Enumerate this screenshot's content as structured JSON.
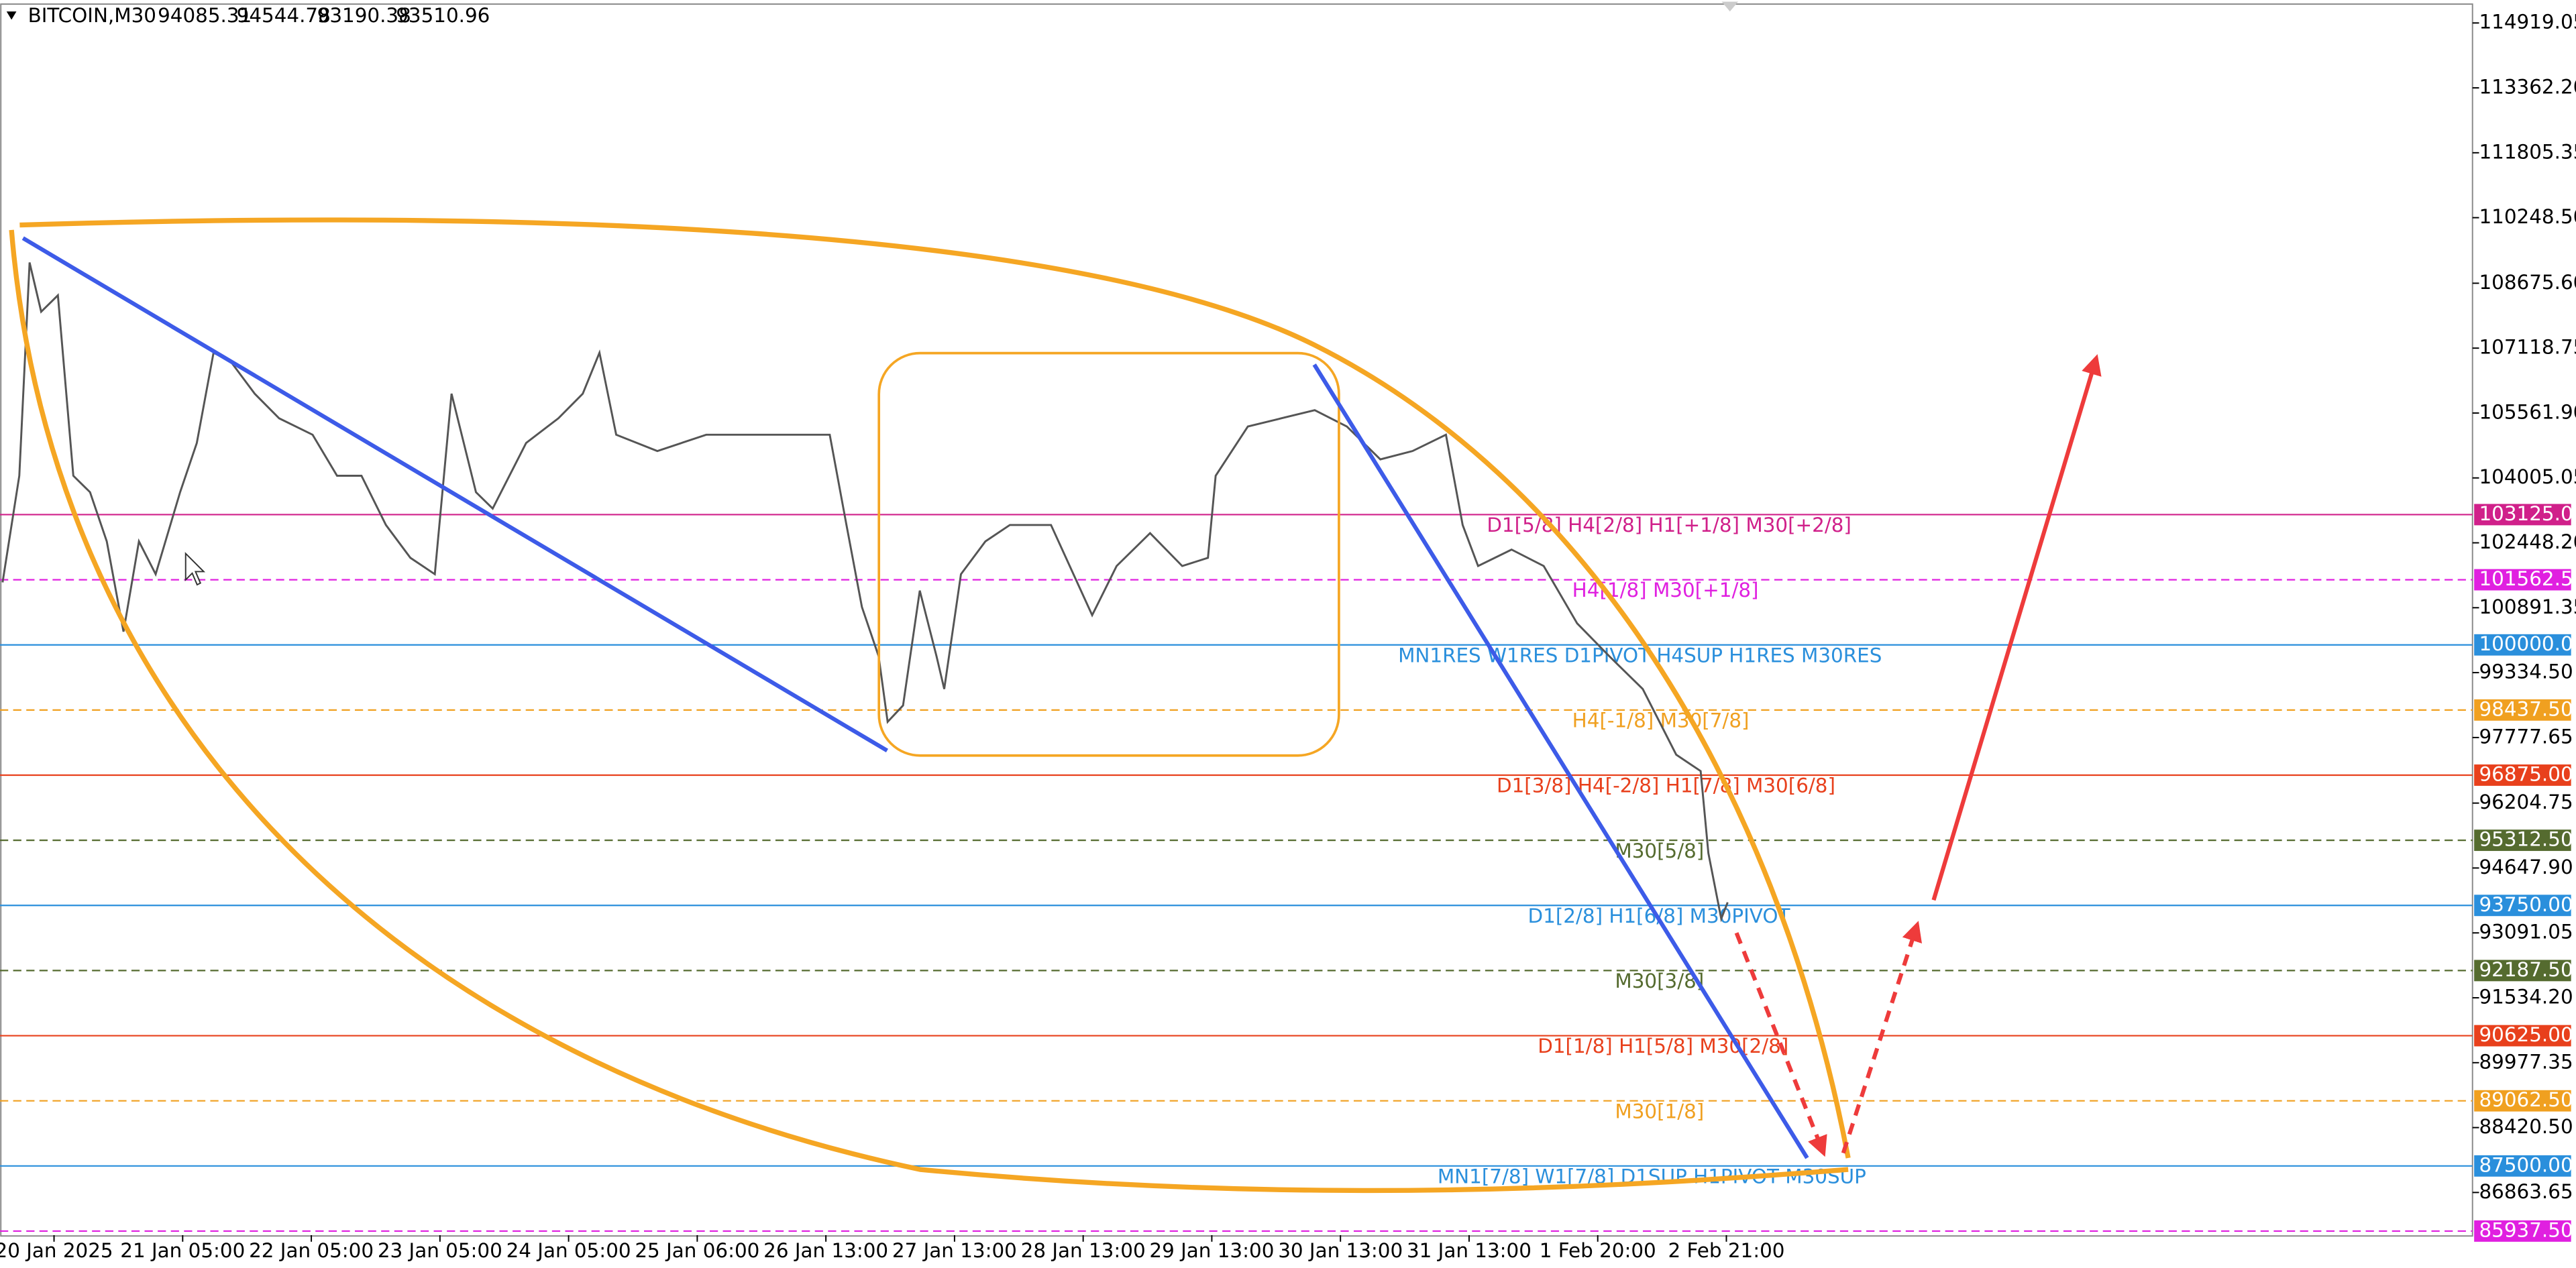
{
  "chart_data": {
    "type": "line",
    "symbol": "BITCOIN,M30",
    "ohlc": [
      94085.31,
      94544.78,
      93190.38,
      93510.96
    ],
    "x_labels": [
      "20 Jan 2025",
      "21 Jan 05:00",
      "22 Jan 05:00",
      "23 Jan 05:00",
      "24 Jan 05:00",
      "25 Jan 06:00",
      "26 Jan 13:00",
      "27 Jan 13:00",
      "28 Jan 13:00",
      "29 Jan 13:00",
      "30 Jan 13:00",
      "31 Jan 13:00",
      "1 Feb 20:00",
      "2 Feb 21:00"
    ],
    "xticks": [
      0,
      1,
      2,
      3,
      4,
      5,
      6,
      7,
      8,
      9,
      10,
      11,
      12,
      13
    ],
    "xlim": [
      -0.42,
      18.8
    ],
    "ylim": [
      85840,
      115470
    ],
    "yticks": [
      114919.05,
      {
        "value": 113362.2,
        "label": "113362.20"
      },
      111805.35,
      {
        "value": 110248.5,
        "label": "110248.50"
      },
      {
        "value": 108675.6,
        "label": "108675.60"
      },
      107118.75,
      {
        "value": 105561.9,
        "label": "105561.90"
      },
      104005.05,
      {
        "value": 102448.2,
        "label": "102448.20"
      },
      100891.35,
      {
        "value": 99334.5,
        "label": "99334.50"
      },
      97777.65,
      96204.75,
      {
        "value": 94647.9,
        "label": "94647.90"
      },
      93091.05,
      {
        "value": 91534.2,
        "label": "91534.20"
      },
      89977.35,
      {
        "value": 88420.5,
        "label": "88420.50"
      },
      86863.65
    ],
    "series": [
      {
        "color": "#555555",
        "x": [
          -0.4,
          -0.27,
          -0.19,
          -0.1,
          0.03,
          0.15,
          0.28,
          0.41,
          0.54,
          0.66,
          0.79,
          0.98,
          1.11,
          1.24,
          1.37,
          1.56,
          1.75,
          2.01,
          2.2,
          2.39,
          2.58,
          2.77,
          2.96,
          3.09,
          3.28,
          3.41,
          3.67,
          3.92,
          4.11,
          4.24,
          4.37,
          4.69,
          5.07,
          5.45,
          5.84,
          6.03,
          6.16,
          6.28,
          6.41,
          6.48,
          6.6,
          6.73,
          6.86,
          6.92,
          7.05,
          7.24,
          7.43,
          7.75,
          8.07,
          8.26,
          8.52,
          8.77,
          8.97,
          9.03,
          9.28,
          9.54,
          9.8,
          10.05,
          10.31,
          10.56,
          10.82,
          10.95,
          11.07,
          11.33,
          11.58,
          11.84,
          12.09,
          12.35,
          12.61,
          12.8,
          12.86,
          12.96,
          13.01
        ],
        "values": [
          101499,
          104057,
          109173,
          107992,
          108386,
          104057,
          103663,
          102483,
          100318,
          102483,
          101696,
          103663,
          104844,
          107009,
          106812,
          106025,
          105435,
          105041,
          104057,
          104057,
          102876,
          102089,
          101696,
          106025,
          103663,
          103270,
          104844,
          105435,
          106025,
          107009,
          105041,
          104650,
          105041,
          105041,
          105041,
          105041,
          102876,
          100909,
          99728,
          98153,
          98547,
          101302,
          99728,
          98941,
          101696,
          102483,
          102876,
          102876,
          100712,
          101892,
          102680,
          101892,
          102089,
          104057,
          105238,
          105435,
          105631,
          105238,
          104450,
          104650,
          105041,
          102876,
          101892,
          102286,
          101892,
          100515,
          99728,
          98941,
          97366,
          96972,
          95005,
          93431,
          93824
        ]
      }
    ],
    "levels": [
      {
        "value": 103125,
        "label": "103125.00",
        "text": "D1[5/8] H4[2/8] H1[+1/8] M30[+2/8]",
        "color": "#d0208a",
        "dash": false
      },
      {
        "value": 101562.5,
        "label": "101562.50",
        "text": "H4[1/8] M30[+1/8]",
        "color": "#e020e0",
        "dash": true
      },
      {
        "value": 100000,
        "label": "100000.00",
        "text": "MN1RES W1RES D1PIVOT H4SUP H1RES M30RES",
        "color": "#2a8fdc",
        "dash": false
      },
      {
        "value": 98437.5,
        "label": "98437.50",
        "text": "H4[-1/8] M30[7/8]",
        "color": "#f0a020",
        "dash": true
      },
      {
        "value": 96875,
        "label": "96875.00",
        "text": "D1[3/8] H4[-2/8] H1[7/8] M30[6/8]",
        "color": "#e8401c",
        "dash": false
      },
      {
        "value": 95312.5,
        "label": "95312.50",
        "text": "M30[5/8]",
        "color": "#556b2f",
        "dash": true
      },
      {
        "value": 93750,
        "label": "93750.00",
        "text": "D1[2/8] H1[6/8] M30PIVOT",
        "color": "#2a8fdc",
        "dash": false
      },
      {
        "value": 92187.5,
        "label": "92187.50",
        "text": "M30[3/8]",
        "color": "#556b2f",
        "dash": true
      },
      {
        "value": 90625,
        "label": "90625.00",
        "text": "D1[1/8] H1[5/8] M30[2/8]",
        "color": "#e8401c",
        "dash": false
      },
      {
        "value": 89062.5,
        "label": "89062.50",
        "text": "M30[1/8]",
        "color": "#f0a020",
        "dash": true
      },
      {
        "value": 87500,
        "label": "87500.00",
        "text": "MN1[7/8] W1[7/8] D1SUP H1PIVOT M30SUP",
        "color": "#2a8fdc",
        "dash": false
      },
      {
        "value": 85937.5,
        "label": "85937.50",
        "color": "#e020e0",
        "dash": true
      }
    ]
  }
}
